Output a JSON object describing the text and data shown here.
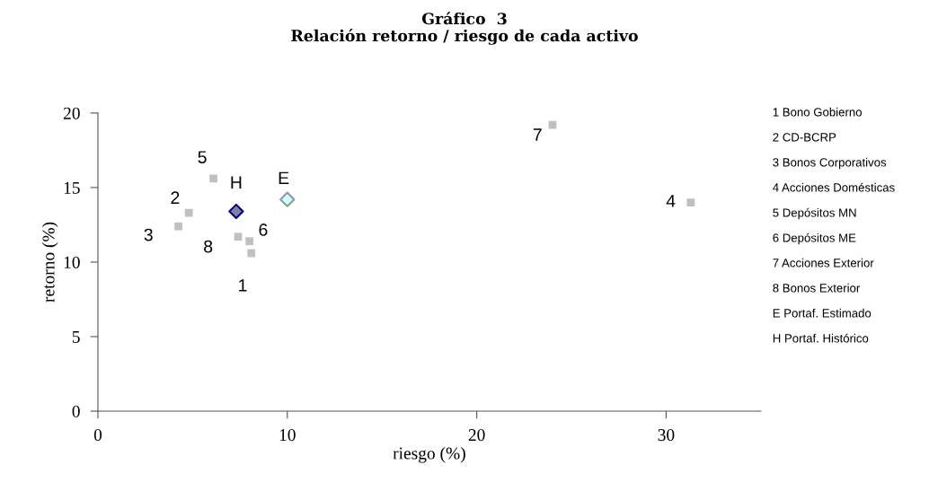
{
  "chart_data": {
    "type": "scatter",
    "title": "Gráfico  3\nRelación retorno / riesgo de cada activo",
    "xlabel": "riesgo (%)",
    "ylabel": "retorno (%)",
    "xlim": [
      0,
      35
    ],
    "xticks": [
      0,
      10,
      20,
      30
    ],
    "ylim": [
      0,
      20
    ],
    "yticks": [
      0,
      5,
      10,
      15,
      20
    ],
    "grid": false,
    "legend": false,
    "series": [
      {
        "color": "#c0c0c0",
        "marker": "square",
        "x": [
          8.1,
          4.8,
          4.25,
          31.3,
          6.1,
          8.0,
          24.0,
          7.4
        ],
        "values": [
          10.6,
          13.3,
          12.4,
          14.0,
          15.6,
          11.4,
          19.2,
          11.7
        ]
      },
      {
        "color": "#ccffff",
        "marker": "diamond",
        "x": [
          10.0
        ],
        "values": [
          14.2
        ]
      },
      {
        "color": "#8080a0",
        "marker": "diamond",
        "x": [
          7.3
        ],
        "values": [
          13.4
        ]
      }
    ],
    "annotations": [
      {
        "text": "1",
        "x": 8.1,
        "y": 10.6
      },
      {
        "text": "2",
        "x": 4.8,
        "y": 13.3
      },
      {
        "text": "3",
        "x": 4.25,
        "y": 12.4
      },
      {
        "text": "4",
        "x": 31.3,
        "y": 14.0
      },
      {
        "text": "5",
        "x": 6.1,
        "y": 15.6
      },
      {
        "text": "6",
        "x": 8.0,
        "y": 11.4
      },
      {
        "text": "7",
        "x": 24.0,
        "y": 19.2
      },
      {
        "text": "8",
        "x": 7.4,
        "y": 11.7
      },
      {
        "text": "E",
        "x": 10.0,
        "y": 14.2
      },
      {
        "text": "H",
        "x": 7.3,
        "y": 13.4
      },
      "1 Bono Gobierno",
      "2 CD-BCRP",
      "3 Bonos Corporativos",
      "4 Acciones Domésticas",
      "5 Depósitos MN",
      "6 Depósitos ME",
      "7 Acciones Exterior",
      "8 Bonos Exterior",
      "E Portaf. Estimado",
      "H Portaf. Histórico"
    ]
  }
}
